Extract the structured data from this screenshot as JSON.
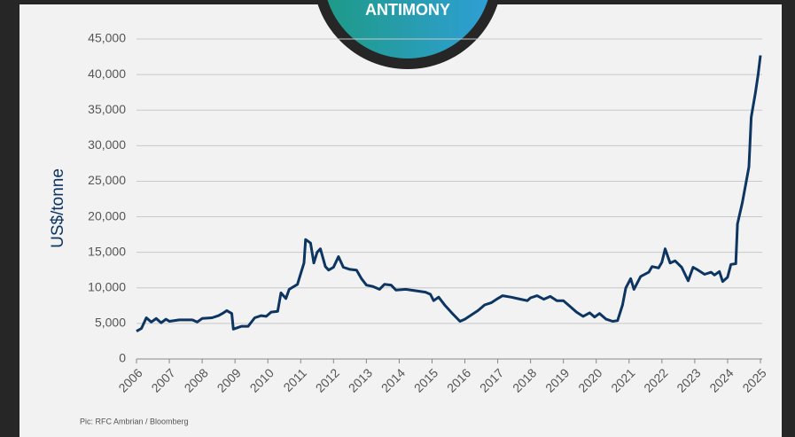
{
  "badge": "ANTIMONY",
  "source": "Pic: RFC Ambrian / Bloomberg",
  "chart_data": {
    "type": "line",
    "y_label": "US$/tonne",
    "color": "#0d3561",
    "grid": true,
    "xlim": [
      2006,
      2025
    ],
    "xticks": [
      2006,
      2007,
      2008,
      2009,
      2010,
      2011,
      2012,
      2013,
      2014,
      2015,
      2016,
      2017,
      2018,
      2019,
      2020,
      2021,
      2022,
      2023,
      2024,
      2025
    ],
    "ylim": [
      0,
      45000
    ],
    "yticks": [
      0,
      {
        "value": 5000,
        "label": "5,000"
      },
      {
        "value": 10000,
        "label": "10,000"
      },
      {
        "value": 15000,
        "label": "15,000"
      },
      {
        "value": 20000,
        "label": "20,000"
      },
      {
        "value": 25000,
        "label": "25,000"
      },
      {
        "value": 30000,
        "label": "30,000"
      },
      {
        "value": 35000,
        "label": "35,000"
      },
      {
        "value": 40000,
        "label": "40,000"
      },
      {
        "value": 45000,
        "label": "45,000"
      }
    ],
    "x": [
      2006.0,
      2006.15,
      2006.3,
      2006.45,
      2006.6,
      2006.75,
      2006.9,
      2007.0,
      2007.3,
      2007.7,
      2007.85,
      2008.0,
      2008.3,
      2008.5,
      2008.65,
      2008.75,
      2008.9,
      2008.95,
      2009.2,
      2009.4,
      2009.6,
      2009.8,
      2009.95,
      2010.1,
      2010.3,
      2010.4,
      2010.55,
      2010.65,
      2010.9,
      2011.0,
      2011.1,
      2011.15,
      2011.3,
      2011.4,
      2011.5,
      2011.6,
      2011.75,
      2011.85,
      2012.0,
      2012.15,
      2012.3,
      2012.5,
      2012.7,
      2012.85,
      2013.0,
      2013.2,
      2013.4,
      2013.55,
      2013.75,
      2013.9,
      2014.2,
      2014.5,
      2014.8,
      2014.95,
      2015.05,
      2015.2,
      2015.4,
      2015.6,
      2015.85,
      2016.0,
      2016.2,
      2016.4,
      2016.6,
      2016.8,
      2017.0,
      2017.15,
      2017.4,
      2017.7,
      2017.9,
      2018.0,
      2018.2,
      2018.4,
      2018.6,
      2018.8,
      2019.0,
      2019.2,
      2019.4,
      2019.6,
      2019.8,
      2019.95,
      2020.1,
      2020.3,
      2020.5,
      2020.65,
      2020.8,
      2020.9,
      2021.05,
      2021.15,
      2021.35,
      2021.6,
      2021.7,
      2021.9,
      2022.0,
      2022.1,
      2022.25,
      2022.4,
      2022.6,
      2022.8,
      2022.95,
      2023.1,
      2023.3,
      2023.5,
      2023.6,
      2023.75,
      2023.85,
      2024.0,
      2024.1,
      2024.25,
      2024.3,
      2024.45,
      2024.65,
      2024.72,
      2024.85,
      2024.93,
      2025.0
    ],
    "values": [
      3900,
      4300,
      5800,
      5200,
      5700,
      5100,
      5600,
      5300,
      5500,
      5500,
      5200,
      5700,
      5800,
      6100,
      6500,
      6800,
      6400,
      4200,
      4600,
      4600,
      5800,
      6100,
      6000,
      6600,
      6700,
      9300,
      8500,
      9800,
      10500,
      12000,
      13500,
      16800,
      16300,
      13500,
      15000,
      15500,
      13000,
      12500,
      12900,
      14400,
      12900,
      12600,
      12500,
      11300,
      10400,
      10200,
      9800,
      10500,
      10400,
      9700,
      9800,
      9600,
      9400,
      9100,
      8200,
      8700,
      7500,
      6500,
      5300,
      5600,
      6200,
      6800,
      7600,
      7900,
      8500,
      8900,
      8700,
      8400,
      8200,
      8600,
      8900,
      8400,
      8800,
      8200,
      8200,
      7400,
      6600,
      6000,
      6500,
      5900,
      6400,
      5600,
      5300,
      5400,
      7600,
      10000,
      11300,
      9800,
      11600,
      12200,
      13000,
      12800,
      13600,
      15500,
      13500,
      13800,
      12900,
      11000,
      12900,
      12500,
      11900,
      12200,
      11800,
      12300,
      10900,
      11500,
      13300,
      13400,
      19000,
      22000,
      27000,
      34000,
      37500,
      40000,
      42700
    ]
  }
}
